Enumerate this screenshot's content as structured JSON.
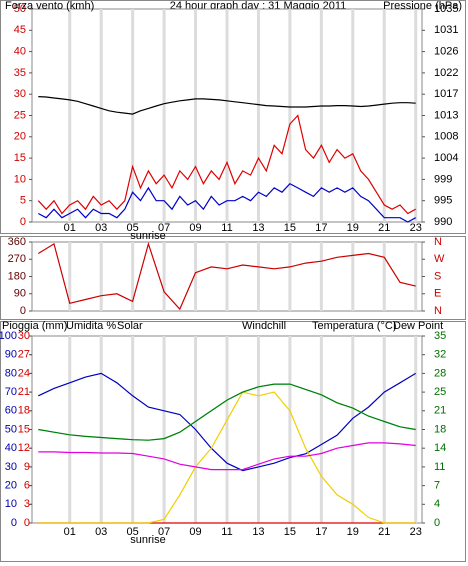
{
  "chart_data": [
    {
      "type": "line",
      "title": "24 hour graph day : 31 Maggio 2011",
      "annotation": "sunrise",
      "xlim": [
        -1.4,
        23.4
      ],
      "xticks": [
        {
          "value": 1,
          "label": "01"
        },
        {
          "value": 3,
          "label": "03"
        },
        {
          "value": 5,
          "label": "05"
        },
        {
          "value": 7,
          "label": "07"
        },
        {
          "value": 9,
          "label": "09"
        },
        {
          "value": 11,
          "label": "11"
        },
        {
          "value": 13,
          "label": "13"
        },
        {
          "value": 15,
          "label": "15"
        },
        {
          "value": 17,
          "label": "17"
        },
        {
          "value": 19,
          "label": "19"
        },
        {
          "value": 21,
          "label": "21"
        },
        {
          "value": 23,
          "label": "23"
        }
      ],
      "ylim": [
        0,
        50
      ],
      "yticks": [
        0,
        5,
        10,
        15,
        20,
        25,
        30,
        35,
        40,
        45,
        50
      ],
      "y2lim": [
        990,
        1035
      ],
      "y2ticks": [
        990,
        {
          "value": 994.5,
          "label": "995"
        },
        999,
        {
          "value": 1003.5,
          "label": "1004"
        },
        1008,
        {
          "value": 1012.5,
          "label": "1013"
        },
        1017,
        {
          "value": 1021.5,
          "label": "1022"
        },
        1026,
        {
          "value": 1030.5,
          "label": "1031"
        },
        1035
      ],
      "x": [
        -1,
        -0.5,
        0,
        0.5,
        1,
        1.5,
        2,
        2.5,
        3,
        3.5,
        4,
        4.5,
        5,
        5.5,
        6,
        6.5,
        7,
        7.5,
        8,
        8.5,
        9,
        9.5,
        10,
        10.5,
        11,
        11.5,
        12,
        12.5,
        13,
        13.5,
        14,
        14.5,
        15,
        15.5,
        16,
        16.5,
        17,
        17.5,
        18,
        18.5,
        19,
        19.5,
        20,
        20.5,
        21,
        21.5,
        22,
        22.5,
        23
      ],
      "series": [
        {
          "name": "Forza vento (kmh)",
          "color": "#e00000",
          "values": [
            5,
            3,
            5,
            2,
            4,
            5,
            3,
            6,
            4,
            5,
            3,
            5,
            13,
            8,
            12,
            9,
            11,
            8,
            12,
            10,
            13,
            9,
            12,
            10,
            14,
            9,
            12,
            11,
            15,
            12,
            18,
            16,
            23,
            25,
            17,
            15,
            18,
            14,
            17,
            15,
            16,
            12,
            10,
            7,
            4,
            3,
            4,
            2,
            3
          ]
        },
        {
          "color": "#0000cc",
          "values": [
            2,
            1,
            3,
            1,
            2,
            3,
            1,
            3,
            2,
            2,
            1,
            3,
            7,
            5,
            8,
            5,
            5,
            3,
            6,
            4,
            5,
            3,
            6,
            4,
            5,
            5,
            6,
            5,
            7,
            6,
            8,
            7,
            9,
            8,
            7,
            6,
            8,
            7,
            8,
            7,
            8,
            6,
            5,
            3,
            1,
            1,
            1,
            0,
            1
          ]
        },
        {
          "name": "Pressione (hPa)",
          "color": "#000000",
          "axis": "y2",
          "values": [
            1016.5,
            1016.4,
            1016.2,
            1016,
            1015.8,
            1015.5,
            1015,
            1014.5,
            1014,
            1013.5,
            1013.2,
            1013,
            1012.8,
            1013.5,
            1014,
            1014.5,
            1015,
            1015.3,
            1015.6,
            1015.8,
            1016,
            1016,
            1015.9,
            1015.8,
            1015.6,
            1015.4,
            1015.2,
            1015,
            1014.8,
            1014.6,
            1014.5,
            1014.4,
            1014.3,
            1014.3,
            1014.3,
            1014.4,
            1014.5,
            1014.5,
            1014.6,
            1014.6,
            1014.5,
            1014.4,
            1014.5,
            1014.7,
            1014.9,
            1015.1,
            1015.2,
            1015.2,
            1015.1
          ]
        }
      ]
    },
    {
      "type": "line",
      "xlim": [
        -1.4,
        23.4
      ],
      "xticks": [
        1,
        3,
        5,
        7,
        9,
        11,
        13,
        15,
        17,
        19,
        21,
        23
      ],
      "ylim": [
        0,
        360
      ],
      "yticks": [
        0,
        90,
        180,
        270,
        360
      ],
      "y2ticks": [
        {
          "value": 0,
          "label": "N"
        },
        {
          "value": 90,
          "label": "E"
        },
        {
          "value": 180,
          "label": "S"
        },
        {
          "value": 270,
          "label": "W"
        },
        {
          "value": 360,
          "label": "N"
        }
      ],
      "x": [
        -1,
        0,
        1,
        2,
        3,
        4,
        5,
        6,
        7,
        8,
        9,
        10,
        11,
        12,
        13,
        14,
        15,
        16,
        17,
        18,
        19,
        20,
        21,
        22,
        23
      ],
      "series": [
        {
          "color": "#cc0000",
          "values": [
            300,
            350,
            40,
            60,
            80,
            90,
            50,
            350,
            100,
            10,
            200,
            230,
            220,
            240,
            230,
            220,
            230,
            250,
            260,
            280,
            290,
            300,
            280,
            150,
            130
          ]
        }
      ]
    },
    {
      "type": "line",
      "annotation": "sunrise",
      "xlim": [
        -1.4,
        23.4
      ],
      "xticks": [
        {
          "value": 1,
          "label": "01"
        },
        {
          "value": 3,
          "label": "03"
        },
        {
          "value": 5,
          "label": "05"
        },
        {
          "value": 7,
          "label": "07"
        },
        {
          "value": 9,
          "label": "09"
        },
        {
          "value": 11,
          "label": "11"
        },
        {
          "value": 13,
          "label": "13"
        },
        {
          "value": 15,
          "label": "15"
        },
        {
          "value": 17,
          "label": "17"
        },
        {
          "value": 19,
          "label": "19"
        },
        {
          "value": 21,
          "label": "21"
        },
        {
          "value": 23,
          "label": "23"
        }
      ],
      "ylim": [
        0,
        100
      ],
      "yticks": [
        0,
        10,
        20,
        30,
        40,
        50,
        60,
        70,
        80,
        90,
        100
      ],
      "y3lim": [
        0,
        30
      ],
      "y3ticks": [
        0,
        3,
        6,
        9,
        12,
        15,
        18,
        21,
        24,
        27,
        30
      ],
      "y2lim": [
        0,
        35
      ],
      "y2ticks": [
        0,
        {
          "value": 3.5,
          "label": "4"
        },
        7,
        {
          "value": 10.5,
          "label": "11"
        },
        14,
        {
          "value": 17.5,
          "label": "18"
        },
        21,
        {
          "value": 24.5,
          "label": "25"
        },
        28,
        {
          "value": 31.5,
          "label": "32"
        },
        35
      ],
      "x": [
        -1,
        0,
        1,
        2,
        3,
        4,
        5,
        6,
        7,
        8,
        9,
        10,
        11,
        12,
        13,
        14,
        15,
        16,
        17,
        18,
        19,
        20,
        21,
        22,
        23
      ],
      "series": [
        {
          "name": "Pioggia (mm)",
          "color": "#e00000",
          "axis": "y3",
          "values": [
            0,
            0,
            0,
            0,
            0,
            0,
            0,
            0,
            0,
            0,
            0,
            0,
            0,
            0,
            0,
            0,
            0,
            0,
            0,
            0,
            0,
            0,
            0,
            0,
            0
          ]
        },
        {
          "name": "Umidita %",
          "color": "#0000c0",
          "values": [
            68,
            72,
            75,
            78,
            80,
            75,
            68,
            62,
            60,
            58,
            50,
            40,
            32,
            28,
            30,
            32,
            35,
            37,
            42,
            47,
            56,
            62,
            70,
            75,
            80
          ]
        },
        {
          "name": "Solar",
          "color": "#f0d000",
          "values": [
            0,
            0,
            0,
            0,
            0,
            0,
            0,
            0,
            2,
            15,
            30,
            40,
            55,
            70,
            68,
            70,
            60,
            40,
            25,
            15,
            10,
            3,
            0,
            0,
            0
          ]
        },
        {
          "name": "Windchill",
          "color": "#80e0f0",
          "axis": "y2",
          "values": [
            17.5,
            17,
            16.5,
            16.2,
            16,
            15.8,
            15.6,
            15.5,
            15.8,
            17,
            19,
            21,
            23,
            24.5,
            25.5,
            26,
            26,
            25,
            24,
            22.5,
            21.5,
            20,
            19,
            18,
            17.5
          ]
        },
        {
          "name": "Temperatura (°C)",
          "color": "#008000",
          "axis": "y2",
          "values": [
            17.5,
            17,
            16.5,
            16.2,
            16,
            15.8,
            15.6,
            15.5,
            15.8,
            17,
            19,
            21,
            23,
            24.5,
            25.5,
            26,
            26,
            25,
            24,
            22.5,
            21.5,
            20,
            19,
            18,
            17.5
          ]
        },
        {
          "name": "Dew Point",
          "color": "#e000e0",
          "axis": "y2",
          "values": [
            13.3,
            13.3,
            13.2,
            13.2,
            13.1,
            13.1,
            13,
            12.5,
            12,
            11,
            10.5,
            10,
            10,
            10,
            11,
            12,
            12.5,
            12.5,
            13,
            14,
            14.5,
            15,
            15,
            14.8,
            14.5
          ]
        }
      ]
    }
  ]
}
